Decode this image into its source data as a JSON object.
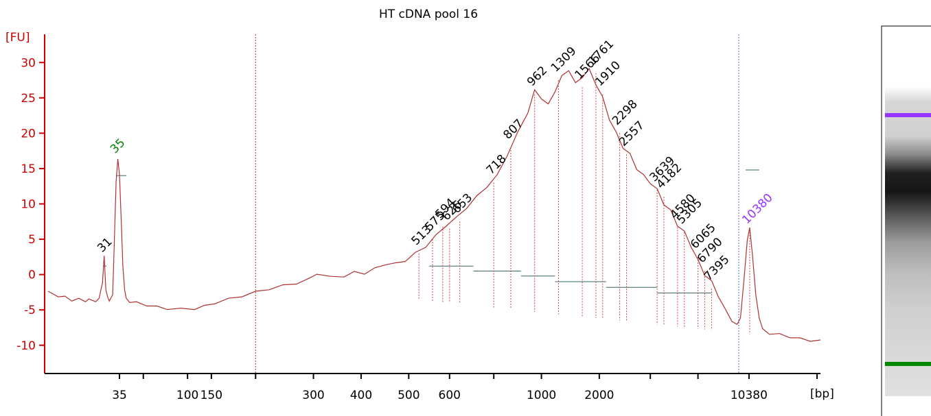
{
  "chart_data": {
    "type": "line",
    "title": "HT cDNA pool 16",
    "ylabel": "[FU]",
    "xlabel": "[bp]",
    "ylim": [
      -14,
      34
    ],
    "yticks": [
      30,
      25,
      20,
      15,
      10,
      5,
      0,
      -5,
      -10
    ],
    "ytick_labels": [
      "30",
      "25",
      "20",
      "15",
      "10",
      "5",
      "0",
      "-5",
      "-10"
    ],
    "xticks": [
      {
        "t": 22,
        "label": "35"
      },
      {
        "t": 29,
        "label": ""
      },
      {
        "t": 42,
        "label": "100"
      },
      {
        "t": 49,
        "label": "150"
      },
      {
        "t": 62,
        "label": ""
      },
      {
        "t": 79,
        "label": "300"
      },
      {
        "t": 93,
        "label": "400"
      },
      {
        "t": 107,
        "label": "500"
      },
      {
        "t": 119,
        "label": "600"
      },
      {
        "t": 132,
        "label": ""
      },
      {
        "t": 146,
        "label": "1000"
      },
      {
        "t": 163,
        "label": "2000"
      },
      {
        "t": 178,
        "label": ""
      },
      {
        "t": 192,
        "label": ""
      },
      {
        "t": 207,
        "label": "10380"
      },
      {
        "t": 227,
        "label": ""
      }
    ],
    "series": [
      {
        "color": "#b03030",
        "points": [
          [
            1,
            -2.5
          ],
          [
            4,
            -3
          ],
          [
            6,
            -3.2
          ],
          [
            8,
            -3.6
          ],
          [
            10,
            -3.5
          ],
          [
            12,
            -3.7
          ],
          [
            13,
            -3.6
          ],
          [
            15,
            -3.7
          ],
          [
            16,
            -3.5
          ],
          [
            17,
            -1
          ],
          [
            17.5,
            2.5
          ],
          [
            18,
            -2
          ],
          [
            18.5,
            -3.3
          ],
          [
            19,
            -3.6
          ],
          [
            20,
            -3
          ],
          [
            20.5,
            5
          ],
          [
            21,
            13
          ],
          [
            21.5,
            16.5
          ],
          [
            22,
            14
          ],
          [
            22.5,
            8
          ],
          [
            23,
            1
          ],
          [
            23.5,
            -2
          ],
          [
            24,
            -3.5
          ],
          [
            25,
            -3.8
          ],
          [
            27,
            -4
          ],
          [
            30,
            -4.3
          ],
          [
            33,
            -4.6
          ],
          [
            36,
            -4.8
          ],
          [
            40,
            -4.9
          ],
          [
            44,
            -4.8
          ],
          [
            47,
            -4.5
          ],
          [
            50,
            -4
          ],
          [
            54,
            -3.5
          ],
          [
            58,
            -3
          ],
          [
            62,
            -2.5
          ],
          [
            66,
            -2
          ],
          [
            70,
            -1.6
          ],
          [
            74,
            -1.2
          ],
          [
            78,
            -0.6
          ],
          [
            80,
            0.2
          ],
          [
            84,
            -0.4
          ],
          [
            88,
            -0.2
          ],
          [
            91,
            0.3
          ],
          [
            94,
            0.2
          ],
          [
            97,
            0.8
          ],
          [
            100,
            1.5
          ],
          [
            103,
            1.5
          ],
          [
            106,
            2
          ],
          [
            109,
            3
          ],
          [
            112,
            4
          ],
          [
            115,
            5.5
          ],
          [
            118,
            7
          ],
          [
            121,
            8
          ],
          [
            124,
            9.5
          ],
          [
            127,
            11
          ],
          [
            130,
            12.5
          ],
          [
            133,
            14
          ],
          [
            136,
            17
          ],
          [
            139,
            20
          ],
          [
            142,
            23
          ],
          [
            144,
            26
          ],
          [
            146,
            25
          ],
          [
            148,
            24
          ],
          [
            150,
            26
          ],
          [
            152,
            28
          ],
          [
            154,
            29
          ],
          [
            156,
            27
          ],
          [
            158,
            28
          ],
          [
            160,
            29
          ],
          [
            162,
            27
          ],
          [
            164,
            25
          ],
          [
            166,
            22
          ],
          [
            168,
            20
          ],
          [
            170,
            18
          ],
          [
            172,
            17
          ],
          [
            174,
            15
          ],
          [
            176,
            14
          ],
          [
            178,
            13
          ],
          [
            180,
            12
          ],
          [
            182,
            10
          ],
          [
            184,
            9
          ],
          [
            186,
            7
          ],
          [
            188,
            6
          ],
          [
            190,
            4
          ],
          [
            192,
            2
          ],
          [
            194,
            0
          ],
          [
            196,
            -1
          ],
          [
            198,
            -3
          ],
          [
            200,
            -5
          ],
          [
            202,
            -6.5
          ],
          [
            203.5,
            -7.2
          ],
          [
            204.5,
            -6
          ],
          [
            205.5,
            -1
          ],
          [
            206.5,
            5
          ],
          [
            207.2,
            6.5
          ],
          [
            208,
            3
          ],
          [
            209,
            -3
          ],
          [
            210,
            -6
          ],
          [
            211,
            -7.8
          ],
          [
            213,
            -8.3
          ],
          [
            216,
            -8.5
          ],
          [
            219,
            -8.8
          ],
          [
            222,
            -9.1
          ],
          [
            225,
            -9.3
          ],
          [
            228,
            -9.4
          ]
        ]
      }
    ],
    "marker_dashed_at": [
      62,
      204
    ],
    "peaks": [
      {
        "label": "31",
        "t": 17.7,
        "y": 2.5,
        "color": "#000000"
      },
      {
        "label": "35",
        "t": 21.5,
        "y": 16.5,
        "color": "#007f00"
      },
      {
        "label": "513",
        "t": 110,
        "y": 3.5,
        "color": "#000000"
      },
      {
        "label": "575",
        "t": 114,
        "y": 5.5,
        "color": "#000000"
      },
      {
        "label": "594",
        "t": 117,
        "y": 7.3,
        "color": "#000000"
      },
      {
        "label": "626",
        "t": 119,
        "y": 7,
        "color": "#000000"
      },
      {
        "label": "653",
        "t": 122,
        "y": 8,
        "color": "#000000"
      },
      {
        "label": "718",
        "t": 132,
        "y": 13.5,
        "color": "#000000"
      },
      {
        "label": "807",
        "t": 137,
        "y": 18.5,
        "color": "#000000"
      },
      {
        "label": "962",
        "t": 144,
        "y": 26,
        "color": "#000000"
      },
      {
        "label": "1309",
        "t": 151,
        "y": 28,
        "color": "#000000"
      },
      {
        "label": "1566",
        "t": 158,
        "y": 27,
        "color": "#000000"
      },
      {
        "label": "1761",
        "t": 162,
        "y": 29,
        "color": "#000000"
      },
      {
        "label": "1910",
        "t": 164,
        "y": 26,
        "color": "#000000"
      },
      {
        "label": "2298",
        "t": 169,
        "y": 20.5,
        "color": "#000000"
      },
      {
        "label": "2557",
        "t": 171,
        "y": 17.5,
        "color": "#000000"
      },
      {
        "label": "3639",
        "t": 180,
        "y": 12.5,
        "color": "#000000"
      },
      {
        "label": "4182",
        "t": 182,
        "y": 11.5,
        "color": "#000000"
      },
      {
        "label": "4580",
        "t": 186,
        "y": 7.2,
        "color": "#000000"
      },
      {
        "label": "5305",
        "t": 188,
        "y": 6.5,
        "color": "#000000"
      },
      {
        "label": "6065",
        "t": 192,
        "y": 3,
        "color": "#000000"
      },
      {
        "label": "6790",
        "t": 194,
        "y": 1,
        "color": "#000000"
      },
      {
        "label": "7395",
        "t": 196,
        "y": -1.5,
        "color": "#000000"
      },
      {
        "label": "10380",
        "t": 207.2,
        "y": 6.5,
        "color": "#9933ff"
      }
    ],
    "baseline_marks": [
      {
        "t1": 17.2,
        "t2": 18.2,
        "y": 1.2
      },
      {
        "t1": 21,
        "t2": 24,
        "y": 14
      },
      {
        "t1": 113,
        "t2": 126,
        "y": 1.2
      },
      {
        "t1": 126,
        "t2": 140,
        "y": 0.5
      },
      {
        "t1": 140,
        "t2": 150,
        "y": -0.2
      },
      {
        "t1": 150,
        "t2": 165,
        "y": -1
      },
      {
        "t1": 165,
        "t2": 180,
        "y": -1.8
      },
      {
        "t1": 180,
        "t2": 196,
        "y": -2.6
      },
      {
        "t1": 206,
        "t2": 210,
        "y": 14.8
      }
    ],
    "gel_bands": [
      {
        "name": "upper-marker",
        "color": "#9933ff",
        "position": 0.08
      },
      {
        "name": "lower-marker",
        "color": "#008800",
        "position": 0.88
      }
    ]
  }
}
